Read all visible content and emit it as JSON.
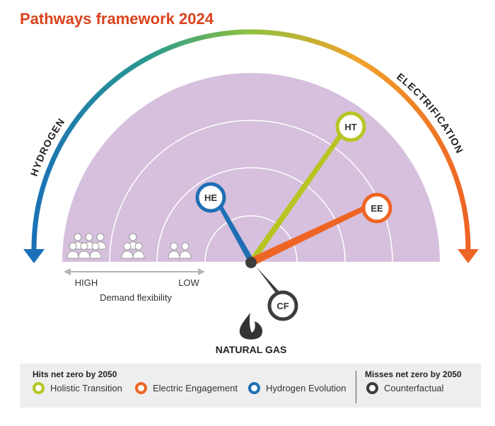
{
  "title": "Pathways framework 2024",
  "arc_labels": {
    "left": "HYDROGEN",
    "right": "ELECTRIFICATION"
  },
  "bottom_label": "NATURAL GAS",
  "demand": {
    "high": "HIGH",
    "low": "LOW",
    "label": "Demand flexibility"
  },
  "needles": [
    {
      "code": "HT",
      "color": "#b7c523"
    },
    {
      "code": "EE",
      "color": "#ee6424"
    },
    {
      "code": "HE",
      "color": "#1f6fb5"
    },
    {
      "code": "CF",
      "color": "#3d3d3d"
    }
  ],
  "legend": {
    "hits_title": "Hits net zero by 2050",
    "misses_title": "Misses net zero by 2050",
    "items": [
      {
        "label": "Holistic Transition",
        "color": "#b7c523"
      },
      {
        "label": "Electric Engagement",
        "color": "#ee6424"
      },
      {
        "label": "Hydrogen Evolution",
        "color": "#1f6fb5"
      },
      {
        "label": "Counterfactual",
        "color": "#3d3d3d"
      }
    ]
  },
  "colors": {
    "title": "#d9431e",
    "semicircle_fill": "#d6c0dd",
    "gradient": [
      "#1a6fb8",
      "#2a9a8e",
      "#8cc13f",
      "#f0a32b",
      "#ee6424"
    ]
  }
}
